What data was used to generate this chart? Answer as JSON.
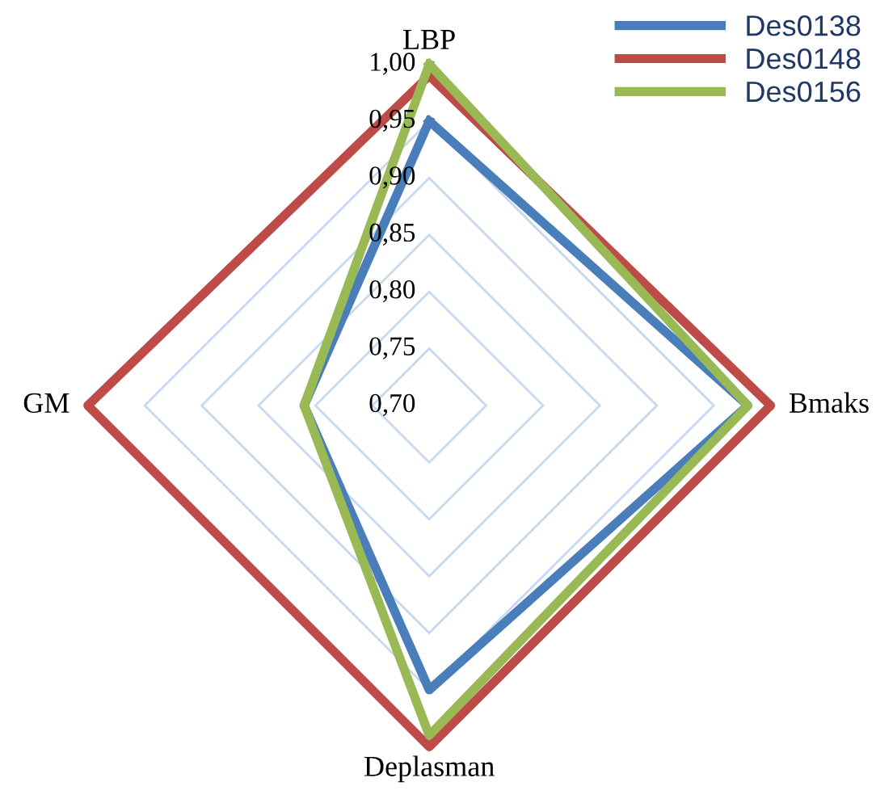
{
  "chart_data": {
    "type": "radar",
    "categories": [
      "LBP",
      "Bmaks",
      "Deplasman",
      "GM"
    ],
    "series": [
      {
        "name": "Des0138",
        "color": "#4a7ebb",
        "values": [
          0.95,
          0.98,
          0.95,
          0.81
        ]
      },
      {
        "name": "Des0148",
        "color": "#be4b48",
        "values": [
          0.99,
          1.0,
          1.0,
          1.0
        ]
      },
      {
        "name": "Des0156",
        "color": "#98b954",
        "values": [
          1.0,
          0.98,
          0.99,
          0.81
        ]
      }
    ],
    "ylim": [
      0.7,
      1.0
    ],
    "yticks": [
      {
        "value": 0.7,
        "label": "0,70"
      },
      {
        "value": 0.75,
        "label": "0,75"
      },
      {
        "value": 0.8,
        "label": "0,80"
      },
      {
        "value": 0.85,
        "label": "0,85"
      },
      {
        "value": 0.9,
        "label": "0,90"
      },
      {
        "value": 0.95,
        "label": "0,95"
      },
      {
        "value": 1.0,
        "label": "1,00"
      }
    ],
    "grid": true,
    "legend": "top right"
  }
}
